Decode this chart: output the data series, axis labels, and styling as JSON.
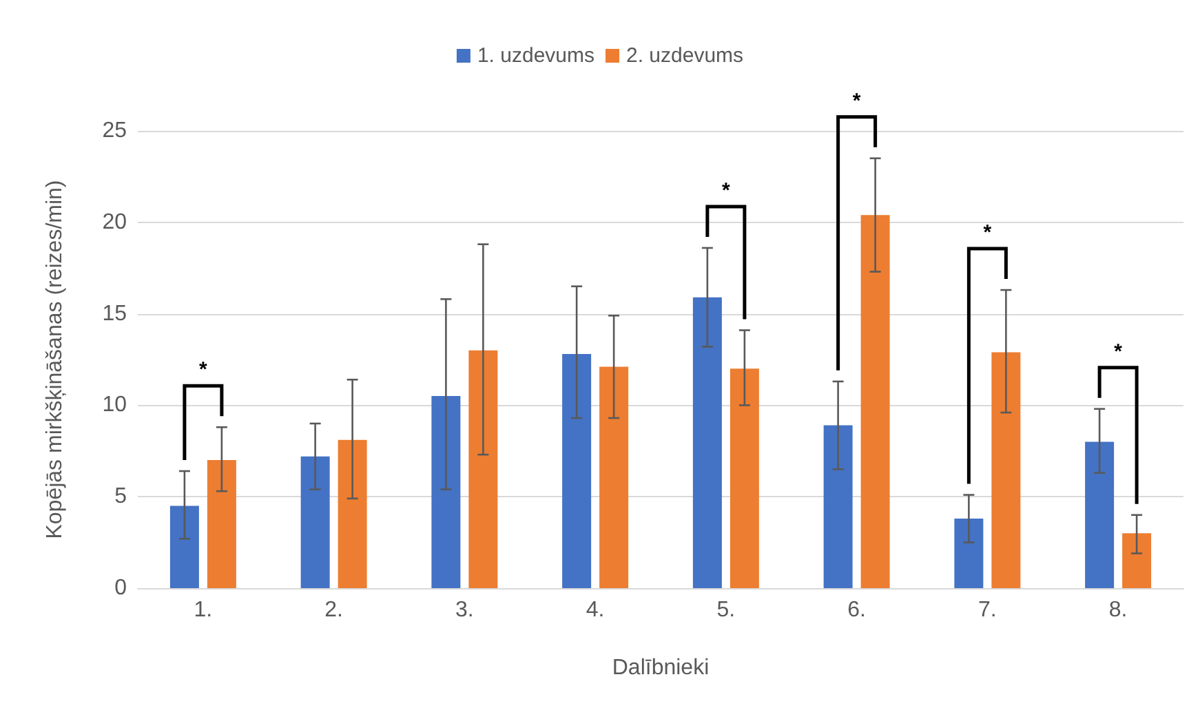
{
  "chart_data": {
    "type": "bar",
    "xlabel": "Dalībnieki",
    "ylabel": "Kopējās mirkšķināšanas (reizes/min)",
    "categories": [
      "1.",
      "2.",
      "3.",
      "4.",
      "5.",
      "6.",
      "7.",
      "8."
    ],
    "series": [
      {
        "name": "1. uzdevums",
        "color": "#4472c4",
        "values": [
          4.5,
          7.2,
          10.5,
          12.8,
          15.9,
          8.9,
          3.8,
          8.0
        ],
        "errors": [
          [
            2.7,
            6.4
          ],
          [
            5.4,
            9.0
          ],
          [
            5.4,
            15.8
          ],
          [
            9.3,
            16.5
          ],
          [
            13.2,
            18.6
          ],
          [
            6.5,
            11.3
          ],
          [
            2.5,
            5.1
          ],
          [
            6.3,
            9.8
          ]
        ]
      },
      {
        "name": "2. uzdevums",
        "color": "#ed7d31",
        "values": [
          7.0,
          8.1,
          13.0,
          12.1,
          12.0,
          20.4,
          12.9,
          3.0
        ],
        "errors": [
          [
            5.3,
            8.8
          ],
          [
            4.9,
            11.4
          ],
          [
            7.3,
            18.8
          ],
          [
            9.3,
            14.9
          ],
          [
            10.0,
            14.1
          ],
          [
            17.3,
            23.5
          ],
          [
            9.6,
            16.3
          ],
          [
            1.9,
            4.0
          ]
        ]
      }
    ],
    "annotations": [
      "*",
      "*",
      "*",
      "*",
      "*"
    ],
    "ylim": [
      0,
      25
    ],
    "yticks": [
      0,
      5,
      10,
      15,
      20,
      25
    ],
    "grid": "y",
    "legend": "top"
  }
}
